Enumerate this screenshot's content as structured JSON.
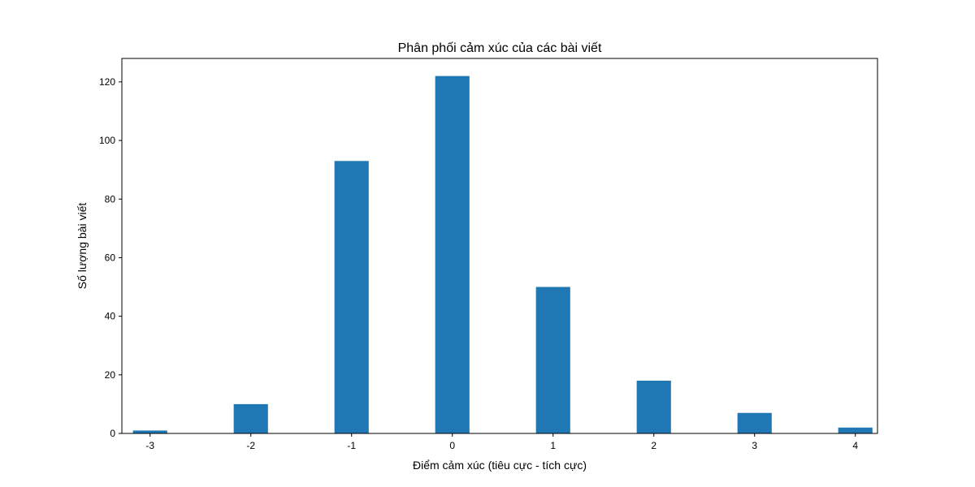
{
  "chart_data": {
    "type": "bar",
    "title": "Phân phối cảm xúc của các bài viết",
    "xlabel": "Điểm cảm xúc (tiêu cực - tích cực)",
    "ylabel": "Số lượng bài viết",
    "x": [
      -3,
      -2,
      -1,
      0,
      1,
      2,
      3,
      4
    ],
    "values": [
      1,
      10,
      93,
      122,
      50,
      18,
      7,
      2
    ],
    "xticks": [
      -3,
      -2,
      -1,
      0,
      1,
      2,
      3,
      4
    ],
    "xtick_labels": [
      "-3",
      "-2",
      "-1",
      "0",
      "1",
      "2",
      "3",
      "4"
    ],
    "yticks": [
      0,
      20,
      40,
      60,
      80,
      100,
      120
    ],
    "ytick_labels": [
      "0",
      "20",
      "40",
      "60",
      "80",
      "100",
      "120"
    ],
    "xlim": [
      -3.28,
      4.22
    ],
    "ylim": [
      0,
      128
    ],
    "bar_width": 0.34,
    "grid": false,
    "legend": "none",
    "bar_color": "#1f77b4"
  }
}
